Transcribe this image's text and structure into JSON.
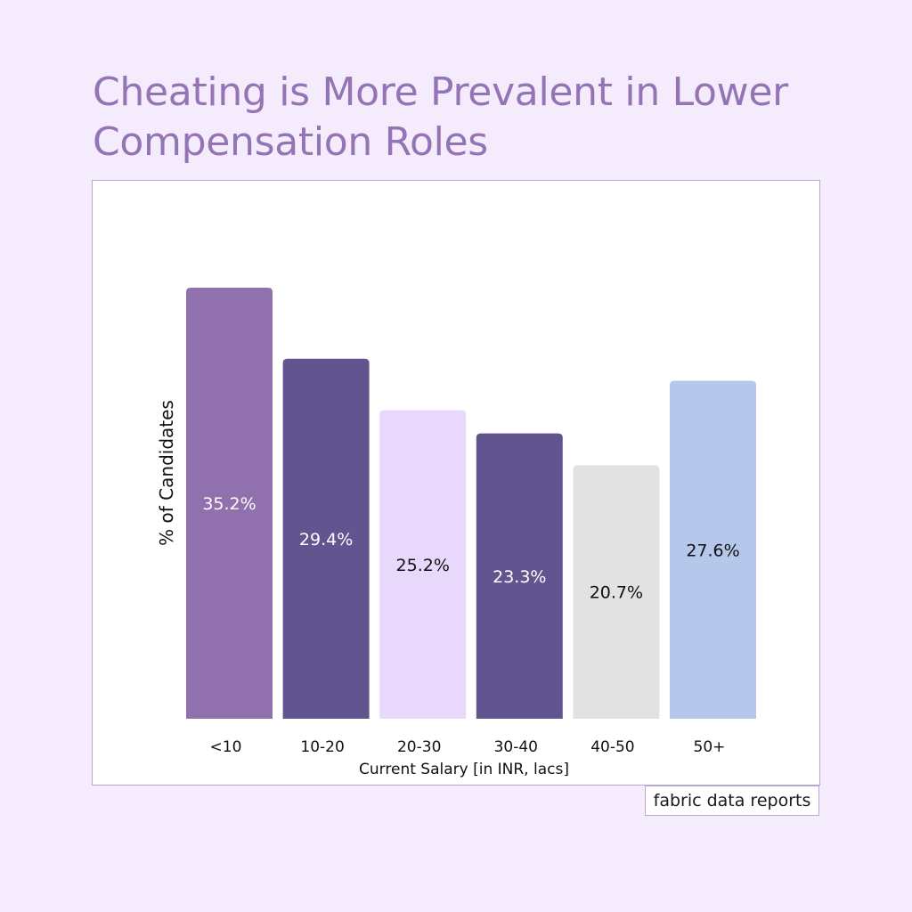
{
  "title": "Cheating is More Prevalent in Lower Compensation Roles",
  "source": "fabric data reports",
  "chart_data": {
    "type": "bar",
    "title": "Cheating is More Prevalent in Lower Compensation Roles",
    "xlabel": "Current Salary [in INR, lacs]",
    "ylabel": "% of Candidates",
    "categories": [
      "<10",
      "10-20",
      "20-30",
      "30-40",
      "40-50",
      "50+"
    ],
    "values": [
      35.2,
      29.4,
      25.2,
      23.3,
      20.7,
      27.6
    ],
    "value_labels": [
      "35.2%",
      "29.4%",
      "25.2%",
      "23.3%",
      "20.7%",
      "27.6%"
    ],
    "colors": [
      "#9170ae",
      "#62558f",
      "#e8d8fc",
      "#62558f",
      "#e2e2e2",
      "#b5c7ea"
    ],
    "label_colors": [
      "#ffffff",
      "#ffffff",
      "#111111",
      "#ffffff",
      "#111111",
      "#111111"
    ],
    "ylim": [
      0,
      35.2
    ],
    "grid": false,
    "legend": "none"
  }
}
